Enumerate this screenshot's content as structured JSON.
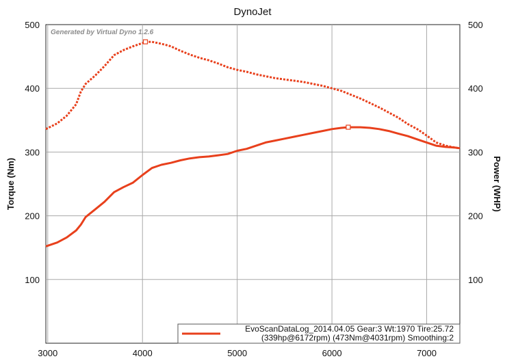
{
  "chart_data": {
    "type": "line",
    "title": "DynoJet",
    "watermark": "Generated by Virtual Dyno 1.2.6",
    "xlabel": "",
    "ylabel_left": "Torque (Nm)",
    "ylabel_right": "Power (WHP)",
    "xlim": [
      2980,
      7350
    ],
    "ylim_left": [
      0,
      500
    ],
    "ylim_right": [
      0,
      500
    ],
    "x_ticks": [
      3000,
      4000,
      5000,
      6000,
      7000
    ],
    "y_ticks_left": [
      100,
      200,
      300,
      400,
      500
    ],
    "y_ticks_right": [
      100,
      200,
      300,
      400,
      500
    ],
    "grid": true,
    "line_color": "#e8401c",
    "legend": {
      "placement": "bottom-right",
      "line1": "EvoScanDataLog_2014.04.05 Gear:3 Wt:1970 Tire:25.72",
      "line2": "(339hp@6172rpm) (473Nm@4031rpm) Smoothing:2"
    },
    "series": [
      {
        "name": "Power (WHP)",
        "style": "solid",
        "axis": "right",
        "x": [
          2980,
          3100,
          3200,
          3300,
          3350,
          3400,
          3500,
          3600,
          3700,
          3800,
          3900,
          4000,
          4100,
          4200,
          4300,
          4400,
          4500,
          4600,
          4700,
          4800,
          4900,
          5000,
          5100,
          5200,
          5300,
          5400,
          5500,
          5600,
          5700,
          5800,
          5900,
          6000,
          6100,
          6172,
          6300,
          6400,
          6500,
          6600,
          6700,
          6800,
          6900,
          7000,
          7100,
          7200,
          7300,
          7350
        ],
        "y": [
          152,
          158,
          166,
          177,
          186,
          198,
          210,
          222,
          237,
          245,
          252,
          264,
          275,
          280,
          283,
          287,
          290,
          292,
          293,
          295,
          297,
          302,
          305,
          310,
          315,
          318,
          321,
          324,
          327,
          330,
          333,
          336,
          338,
          339,
          339,
          338,
          336,
          333,
          329,
          325,
          320,
          315,
          310,
          308,
          307,
          306
        ]
      },
      {
        "name": "Torque (Nm)",
        "style": "dotted",
        "axis": "left",
        "x": [
          2980,
          3100,
          3200,
          3300,
          3350,
          3400,
          3500,
          3600,
          3700,
          3800,
          3900,
          4000,
          4031,
          4100,
          4200,
          4300,
          4400,
          4500,
          4600,
          4700,
          4800,
          4900,
          5000,
          5100,
          5200,
          5300,
          5400,
          5500,
          5600,
          5700,
          5800,
          5900,
          6000,
          6100,
          6200,
          6300,
          6400,
          6500,
          6600,
          6700,
          6800,
          6900,
          7000,
          7100,
          7200,
          7300,
          7350
        ],
        "y": [
          336,
          345,
          357,
          375,
          395,
          407,
          420,
          435,
          452,
          460,
          466,
          471,
          473,
          473,
          470,
          466,
          459,
          453,
          448,
          444,
          439,
          433,
          429,
          426,
          422,
          419,
          416,
          414,
          412,
          410,
          407,
          404,
          400,
          396,
          390,
          384,
          377,
          370,
          362,
          354,
          344,
          336,
          326,
          315,
          310,
          307,
          306
        ]
      }
    ],
    "markers": [
      {
        "series": "Torque (Nm)",
        "x": 4031,
        "y": 473
      },
      {
        "series": "Power (WHP)",
        "x": 6172,
        "y": 339
      }
    ]
  }
}
